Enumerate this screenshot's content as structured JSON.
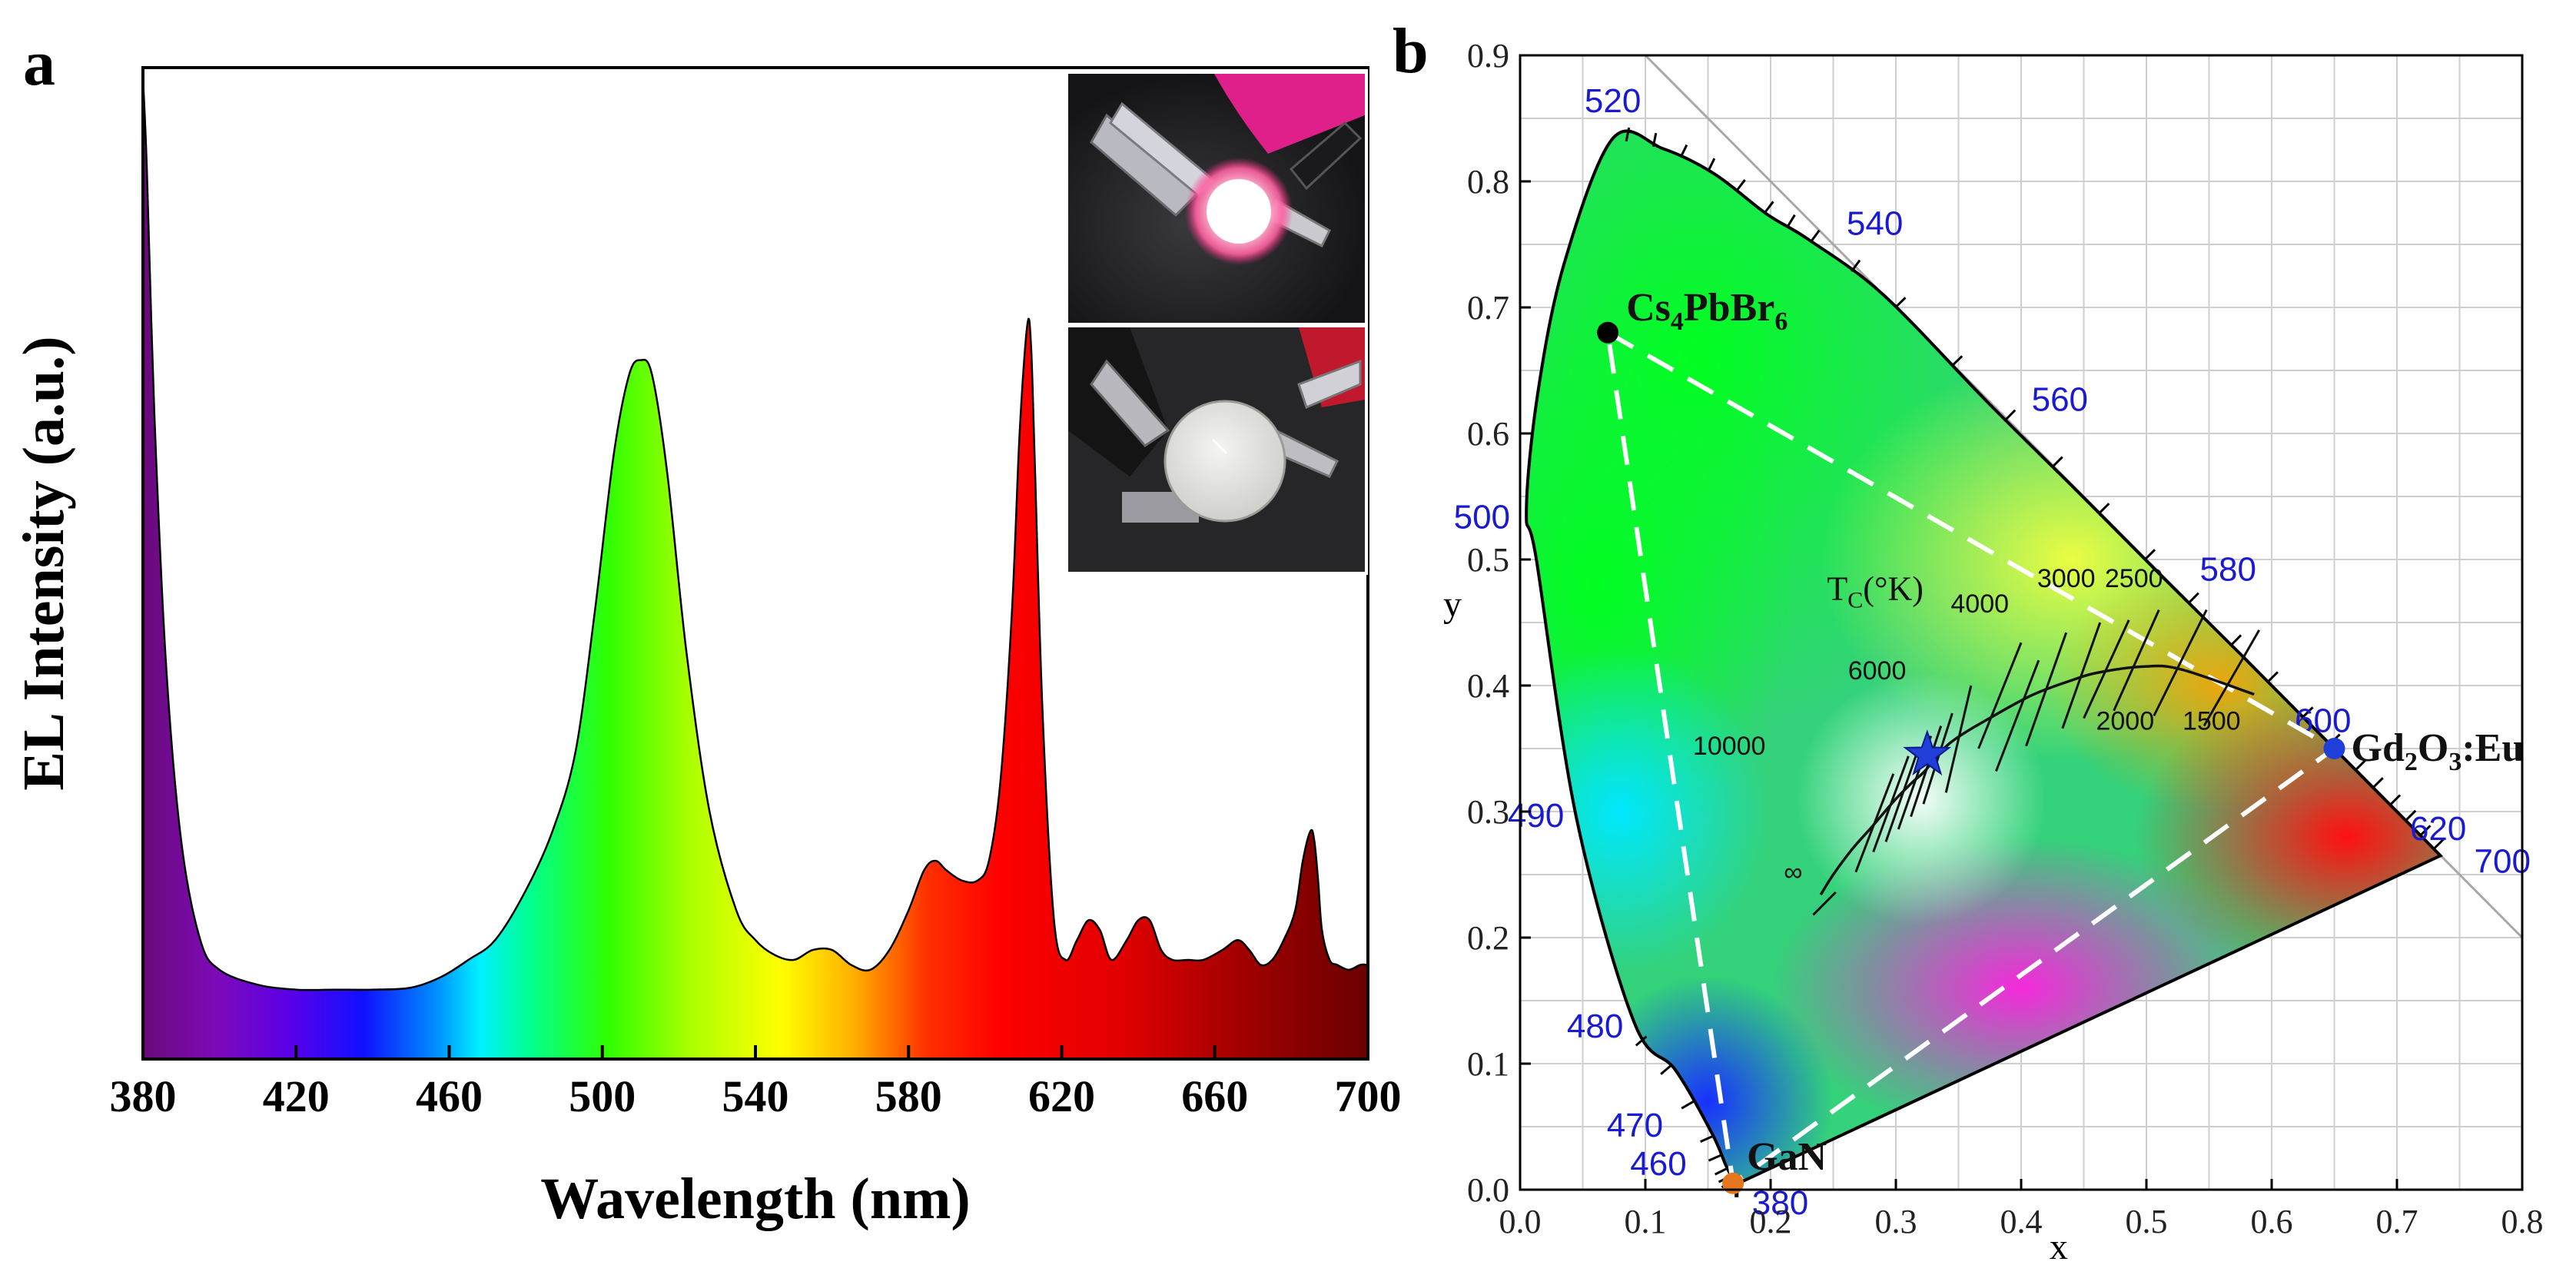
{
  "chart_data": [
    {
      "panel": "a",
      "type": "area",
      "title": "",
      "xlabel": "Wavelength (nm)",
      "ylabel": "EL Intensity (a.u.)",
      "xlim": [
        380,
        700
      ],
      "ylim": [
        0,
        1.0
      ],
      "x_ticks": [
        "380",
        "420",
        "460",
        "500",
        "540",
        "580",
        "620",
        "660",
        "700"
      ],
      "fill": "visible-spectrum gradient (violet to dark red)",
      "series": [
        {
          "name": "EL spectrum",
          "x": [
            380,
            381,
            383,
            386,
            390,
            395,
            400,
            410,
            420,
            430,
            440,
            450,
            458,
            465,
            472,
            480,
            487,
            493,
            498,
            503,
            507,
            510,
            513,
            517,
            522,
            528,
            535,
            540,
            545,
            550,
            555,
            560,
            565,
            570,
            575,
            580,
            584,
            587,
            590,
            594,
            598,
            601,
            604,
            607,
            609,
            611,
            612,
            613,
            615,
            618,
            621,
            624,
            627,
            630,
            633,
            637,
            640,
            643,
            646,
            649,
            653,
            657,
            662,
            666,
            669,
            672,
            675,
            678,
            681,
            683,
            685,
            686,
            687,
            688,
            690,
            692,
            695,
            698,
            700
          ],
          "y": [
            0.99,
            0.9,
            0.65,
            0.4,
            0.22,
            0.12,
            0.09,
            0.075,
            0.07,
            0.07,
            0.07,
            0.072,
            0.083,
            0.1,
            0.12,
            0.17,
            0.23,
            0.31,
            0.45,
            0.61,
            0.69,
            0.705,
            0.69,
            0.59,
            0.41,
            0.25,
            0.15,
            0.12,
            0.105,
            0.1,
            0.11,
            0.11,
            0.095,
            0.09,
            0.11,
            0.15,
            0.19,
            0.2,
            0.19,
            0.18,
            0.18,
            0.2,
            0.28,
            0.45,
            0.63,
            0.74,
            0.72,
            0.6,
            0.35,
            0.14,
            0.1,
            0.12,
            0.14,
            0.13,
            0.1,
            0.12,
            0.14,
            0.14,
            0.11,
            0.1,
            0.1,
            0.1,
            0.11,
            0.12,
            0.11,
            0.095,
            0.1,
            0.12,
            0.15,
            0.2,
            0.23,
            0.22,
            0.18,
            0.13,
            0.1,
            0.095,
            0.09,
            0.095,
            0.095
          ]
        }
      ],
      "inset": "photographs of an LED device in operation (pink glow) and off (white)"
    },
    {
      "panel": "b",
      "type": "scatter",
      "title": "",
      "xlabel": "x",
      "ylabel": "y",
      "xlim": [
        0.0,
        0.8
      ],
      "ylim": [
        0.0,
        0.9
      ],
      "grid": true,
      "x_ticks": [
        "0.0",
        "0.1",
        "0.2",
        "0.3",
        "0.4",
        "0.5",
        "0.6",
        "0.7",
        "0.8"
      ],
      "y_ticks": [
        "0.0",
        "0.1",
        "0.2",
        "0.3",
        "0.4",
        "0.5",
        "0.6",
        "0.7",
        "0.8",
        "0.9"
      ],
      "background": "CIE 1931 chromaticity diagram (spectral locus filled with colors)",
      "spectral_locus": {
        "x": [
          0.1741,
          0.172,
          0.169,
          0.164,
          0.153,
          0.124,
          0.091,
          0.045,
          0.013,
          0.005,
          0.014,
          0.035,
          0.074,
          0.114,
          0.155,
          0.197,
          0.23,
          0.29,
          0.374,
          0.444,
          0.512,
          0.575,
          0.627,
          0.666,
          0.692,
          0.715,
          0.7347
        ],
        "y": [
          0.005,
          0.005,
          0.01,
          0.02,
          0.045,
          0.095,
          0.133,
          0.295,
          0.5,
          0.538,
          0.631,
          0.734,
          0.834,
          0.826,
          0.806,
          0.774,
          0.754,
          0.71,
          0.624,
          0.555,
          0.487,
          0.425,
          0.373,
          0.334,
          0.308,
          0.285,
          0.265
        ]
      },
      "wavelength_labels": [
        {
          "text": "520",
          "x": 0.074,
          "y": 0.834
        },
        {
          "text": "540",
          "x": 0.23,
          "y": 0.754
        },
        {
          "text": "560",
          "x": 0.374,
          "y": 0.624
        },
        {
          "text": "580",
          "x": 0.512,
          "y": 0.487
        },
        {
          "text": "600",
          "x": 0.627,
          "y": 0.373
        },
        {
          "text": "620",
          "x": 0.692,
          "y": 0.308
        },
        {
          "text": "700",
          "x": 0.7347,
          "y": 0.265
        },
        {
          "text": "500",
          "x": 0.008,
          "y": 0.538
        },
        {
          "text": "490",
          "x": 0.045,
          "y": 0.295
        },
        {
          "text": "480",
          "x": 0.091,
          "y": 0.133
        },
        {
          "text": "470",
          "x": 0.124,
          "y": 0.058
        },
        {
          "text": "460",
          "x": 0.144,
          "y": 0.03
        },
        {
          "text": "380",
          "x": 0.1741,
          "y": 0.005
        }
      ],
      "points": [
        {
          "name": "Cs4PbBr6",
          "x": 0.07,
          "y": 0.68,
          "color": "#000000"
        },
        {
          "name": "Gd2O3:Eu",
          "x": 0.65,
          "y": 0.35,
          "color": "#1f3fd8"
        },
        {
          "name": "GaN",
          "x": 0.17,
          "y": 0.005,
          "color": "#e8761c"
        },
        {
          "name": "LED (white)",
          "x": 0.325,
          "y": 0.345,
          "color": "#1f3fd8",
          "marker": "star"
        }
      ],
      "gamut_triangle": [
        "Cs4PbBr6",
        "Gd2O3:Eu",
        "GaN"
      ],
      "planckian_locus": {
        "title": "Tc(°K)",
        "x": [
          0.24,
          0.25,
          0.265,
          0.281,
          0.3,
          0.314,
          0.323,
          0.344,
          0.38,
          0.41,
          0.44,
          0.46,
          0.497,
          0.527,
          0.586
        ],
        "y": [
          0.234,
          0.25,
          0.27,
          0.288,
          0.31,
          0.324,
          0.332,
          0.355,
          0.377,
          0.393,
          0.404,
          0.41,
          0.415,
          0.413,
          0.393
        ],
        "cct_labels": [
          "∞",
          "10000",
          "6000",
          "4000",
          "3000",
          "2500",
          "2000",
          "1500"
        ]
      }
    }
  ],
  "panels": {
    "a": {
      "letter": "a",
      "ylabel_text": "EL Intensity (a.u.)",
      "xlabel_text": "Wavelength (nm)"
    },
    "b": {
      "letter": "b",
      "xlabel_text": "x",
      "ylabel_text": "y",
      "tc_title_main": "T",
      "tc_title_sub": "C",
      "tc_title_rest": "(°K)"
    }
  },
  "point_labels": {
    "cs": {
      "main": "Cs",
      "s1": "4",
      "mid": "PbBr",
      "s2": "6"
    },
    "gd": {
      "main": "Gd",
      "s1": "2",
      "mid": "O",
      "s2": "3",
      "rest": ":Eu"
    },
    "gan": {
      "main": "GaN"
    }
  },
  "colors": {
    "axis": "#000000",
    "grid": "#c8c8c8",
    "wavelength_text": "#1a1ad0",
    "triangle": "#ffffff",
    "star": "#1f3fd8"
  }
}
